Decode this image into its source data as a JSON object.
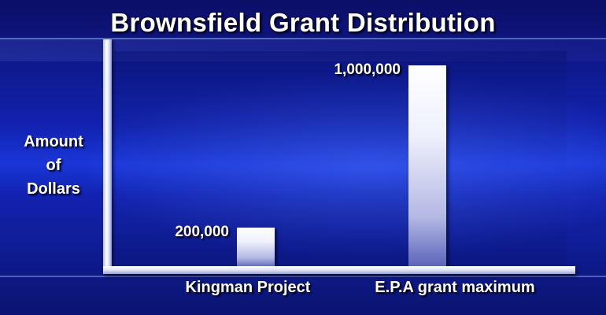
{
  "chart_data": {
    "type": "bar",
    "title": "Brownsfield Grant Distribution",
    "ylabel": [
      "Amount",
      "of",
      "Dollars"
    ],
    "xlabel": "",
    "categories": [
      "Kingman Project",
      "E.P.A grant maximum"
    ],
    "values": [
      200000,
      1000000
    ],
    "data_labels": [
      "200,000",
      "1,000,000"
    ],
    "ylim": [
      0,
      1050000
    ],
    "grid": false,
    "legend": "none"
  }
}
